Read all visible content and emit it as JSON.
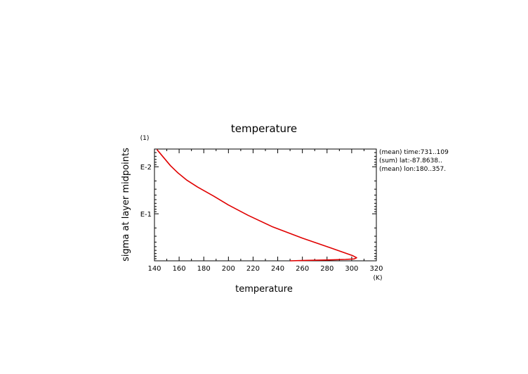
{
  "chart_data": {
    "type": "line",
    "title": "temperature",
    "xlabel": "temperature",
    "ylabel": "sigma at layer midpoints",
    "x_unit": "(K)",
    "y_unit": "(1)",
    "xlim": [
      140,
      320
    ],
    "ylim": [
      1.0,
      0.0042
    ],
    "y_scale": "log",
    "y_inverted": true,
    "x_ticks": [
      "140",
      "160",
      "180",
      "200",
      "220",
      "240",
      "260",
      "280",
      "300",
      "320"
    ],
    "y_ticks": [
      {
        "value": 0.01,
        "label": "E-2"
      },
      {
        "value": 0.1,
        "label": "E-1"
      }
    ],
    "grid": false,
    "legend": "none",
    "line_color": "#e00000",
    "annotations": [
      "(mean) time:731..109",
      "(sum) lat:-87.8638..",
      "(mean) lon:180..357."
    ],
    "series": [
      {
        "x": [
          142,
          153,
          159,
          166,
          175,
          188,
          200,
          216,
          236,
          260,
          283,
          301,
          304,
          302,
          295,
          280,
          262,
          250
        ],
        "y": [
          0.0043,
          0.0095,
          0.0135,
          0.019,
          0.027,
          0.042,
          0.065,
          0.108,
          0.19,
          0.33,
          0.53,
          0.78,
          0.86,
          0.91,
          0.935,
          0.96,
          0.98,
          1.0
        ]
      }
    ]
  }
}
